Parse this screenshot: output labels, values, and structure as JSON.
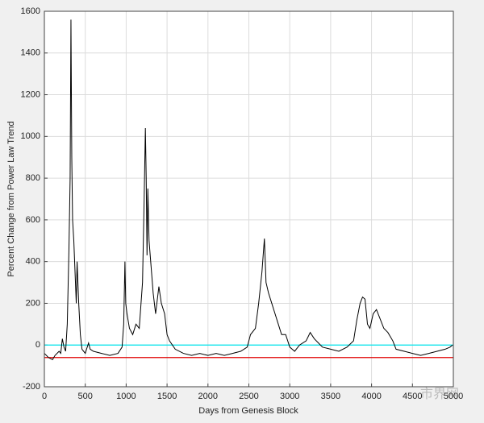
{
  "chart_data": {
    "type": "line",
    "xlabel": "Days from Genesis Block",
    "ylabel": "Percent Change from Power Law Trend",
    "xlim": [
      0,
      5000
    ],
    "xticks": [
      0,
      500,
      1000,
      1500,
      2000,
      2500,
      3000,
      3500,
      4000,
      4500,
      5000
    ],
    "ylim": [
      -200,
      1600
    ],
    "yticks": [
      -200,
      0,
      200,
      400,
      600,
      800,
      1000,
      1200,
      1400,
      1600
    ],
    "grid": true,
    "watermark": "市界网",
    "series": [
      {
        "color": "#000000",
        "x": [
          0,
          50,
          100,
          130,
          180,
          200,
          220,
          240,
          260,
          280,
          300,
          315,
          325,
          335,
          345,
          360,
          380,
          390,
          400,
          420,
          440,
          460,
          500,
          540,
          560,
          600,
          700,
          800,
          900,
          950,
          970,
          985,
          995,
          1010,
          1040,
          1080,
          1120,
          1160,
          1200,
          1220,
          1235,
          1245,
          1255,
          1265,
          1280,
          1300,
          1330,
          1360,
          1400,
          1430,
          1470,
          1500,
          1530,
          1600,
          1700,
          1800,
          1900,
          2000,
          2100,
          2200,
          2300,
          2400,
          2480,
          2520,
          2580,
          2620,
          2660,
          2690,
          2710,
          2740,
          2780,
          2820,
          2860,
          2900,
          2950,
          3000,
          3060,
          3120,
          3200,
          3250,
          3300,
          3350,
          3400,
          3500,
          3600,
          3700,
          3780,
          3820,
          3860,
          3890,
          3920,
          3950,
          3980,
          4020,
          4060,
          4100,
          4150,
          4200,
          4260,
          4300,
          4400,
          4500,
          4600,
          4700,
          4800,
          4900,
          4960,
          4990
        ],
        "values": [
          -40,
          -60,
          -70,
          -50,
          -30,
          -40,
          30,
          -10,
          -30,
          100,
          450,
          800,
          1560,
          900,
          600,
          500,
          300,
          200,
          400,
          200,
          50,
          -20,
          -40,
          10,
          -20,
          -30,
          -40,
          -50,
          -40,
          -10,
          100,
          400,
          200,
          150,
          80,
          50,
          100,
          80,
          300,
          700,
          1040,
          800,
          430,
          750,
          500,
          400,
          250,
          150,
          280,
          200,
          150,
          50,
          20,
          -20,
          -40,
          -50,
          -40,
          -50,
          -40,
          -50,
          -40,
          -30,
          -10,
          50,
          80,
          200,
          350,
          510,
          300,
          250,
          200,
          150,
          100,
          50,
          50,
          -10,
          -30,
          0,
          20,
          60,
          30,
          10,
          -10,
          -20,
          -30,
          -10,
          20,
          120,
          200,
          230,
          220,
          100,
          80,
          150,
          170,
          130,
          80,
          60,
          20,
          -20,
          -30,
          -40,
          -50,
          -40,
          -30,
          -20,
          -10,
          0
        ]
      }
    ],
    "hlines": [
      {
        "value": 0,
        "color": "#00e5ee"
      },
      {
        "value": -60,
        "color": "#e00000"
      }
    ]
  }
}
